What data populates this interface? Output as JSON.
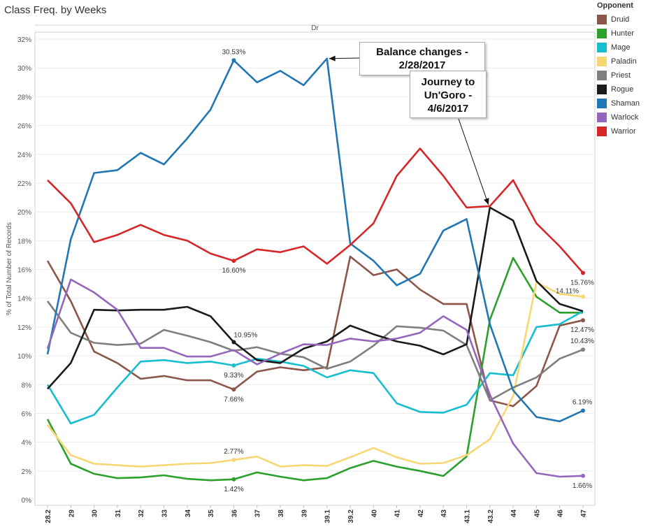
{
  "page": {
    "title": "Class Freq. by Weeks"
  },
  "legend": {
    "title": "Opponent"
  },
  "annotations": [
    {
      "text_lines": [
        "Balance changes -",
        "2/28/2017"
      ]
    },
    {
      "text_lines": [
        "Journey to",
        "Un'Goro -",
        "4/6/2017"
      ]
    }
  ],
  "chart_data": {
    "type": "line",
    "title": "Class Freq. by Weeks",
    "column_header": "Dr",
    "xlabel": "",
    "ylabel": "% of Total Number of Records",
    "ylim": [
      0,
      32
    ],
    "yticks": [
      "0%",
      "2%",
      "4%",
      "6%",
      "8%",
      "10%",
      "12%",
      "14%",
      "16%",
      "18%",
      "20%",
      "22%",
      "24%",
      "26%",
      "28%",
      "30%",
      "32%"
    ],
    "categories": [
      "28.2",
      "29",
      "30",
      "31",
      "32",
      "33",
      "34",
      "35",
      "36",
      "37",
      "38",
      "39",
      "39.1",
      "39.2",
      "40",
      "41",
      "42",
      "43",
      "43.1",
      "43.2",
      "44",
      "45",
      "46",
      "47"
    ],
    "grid": true,
    "legend_position": "right",
    "series": [
      {
        "name": "Druid",
        "color": "#8c564b",
        "values": [
          16.6,
          13.8,
          10.3,
          9.5,
          8.4,
          8.6,
          8.3,
          8.3,
          7.66,
          8.9,
          9.2,
          9.0,
          9.2,
          16.9,
          15.6,
          16.0,
          14.6,
          13.6,
          13.6,
          6.9,
          6.5,
          7.9,
          12.1,
          12.47
        ]
      },
      {
        "name": "Hunter",
        "color": "#2ca02c",
        "values": [
          5.6,
          2.5,
          1.8,
          1.5,
          1.55,
          1.7,
          1.45,
          1.35,
          1.42,
          1.9,
          1.6,
          1.35,
          1.5,
          2.2,
          2.7,
          2.3,
          2.0,
          1.65,
          3.0,
          12.5,
          16.8,
          14.1,
          13.0,
          13.0
        ]
      },
      {
        "name": "Mage",
        "color": "#17becf",
        "values": [
          8.0,
          5.3,
          5.9,
          7.8,
          9.6,
          9.7,
          9.5,
          9.6,
          9.33,
          9.8,
          9.6,
          9.3,
          8.5,
          9.0,
          8.8,
          6.7,
          6.1,
          6.05,
          6.6,
          8.8,
          8.65,
          12.0,
          12.2,
          13.1
        ]
      },
      {
        "name": "Paladin",
        "color": "#f7d774",
        "values": [
          5.2,
          3.1,
          2.5,
          2.4,
          2.3,
          2.4,
          2.5,
          2.55,
          2.77,
          3.0,
          2.3,
          2.4,
          2.35,
          2.95,
          3.6,
          2.95,
          2.5,
          2.55,
          3.1,
          4.2,
          7.2,
          15.1,
          14.3,
          14.11
        ]
      },
      {
        "name": "Priest",
        "color": "#7f7f7f",
        "values": [
          13.8,
          11.6,
          10.9,
          10.75,
          10.85,
          11.8,
          11.4,
          10.95,
          10.35,
          10.6,
          10.15,
          9.9,
          9.1,
          9.6,
          10.7,
          12.05,
          11.95,
          11.75,
          10.75,
          6.9,
          7.8,
          8.5,
          9.8,
          10.43
        ]
      },
      {
        "name": "Rogue",
        "color": "#1a1a1a",
        "values": [
          7.7,
          9.5,
          13.2,
          13.15,
          13.2,
          13.2,
          13.4,
          12.75,
          10.95,
          9.7,
          9.5,
          10.5,
          11.0,
          12.1,
          11.5,
          11.0,
          10.7,
          10.1,
          10.8,
          20.3,
          19.4,
          15.2,
          13.6,
          13.1
        ]
      },
      {
        "name": "Shaman",
        "color": "#1f77b4",
        "values": [
          10.1,
          18.1,
          22.7,
          22.9,
          24.1,
          23.3,
          25.1,
          27.1,
          30.53,
          29.0,
          29.8,
          28.8,
          30.65,
          17.8,
          16.6,
          14.9,
          15.7,
          18.7,
          19.5,
          12.2,
          7.6,
          5.75,
          5.45,
          6.19
        ]
      },
      {
        "name": "Warlock",
        "color": "#9467bd",
        "values": [
          10.5,
          15.3,
          14.4,
          13.2,
          10.55,
          10.55,
          9.95,
          9.95,
          10.4,
          9.4,
          10.15,
          10.8,
          10.75,
          11.2,
          11.0,
          11.2,
          11.6,
          12.75,
          11.8,
          7.3,
          3.9,
          1.85,
          1.6,
          1.66
        ]
      },
      {
        "name": "Warrior",
        "color": "#d62728",
        "values": [
          22.2,
          20.6,
          17.9,
          18.4,
          19.1,
          18.4,
          18.0,
          17.1,
          16.6,
          17.4,
          17.2,
          17.6,
          16.4,
          17.7,
          19.2,
          22.5,
          24.4,
          22.5,
          20.3,
          20.4,
          22.2,
          19.2,
          17.6,
          15.76
        ]
      }
    ],
    "data_labels": [
      {
        "series": "Shaman",
        "category": "36",
        "text": "30.53%",
        "side": "above"
      },
      {
        "series": "Warrior",
        "category": "36",
        "text": "16.60%",
        "side": "below"
      },
      {
        "series": "Rogue",
        "category": "36",
        "text": "10.95%",
        "side": "right-above"
      },
      {
        "series": "Mage",
        "category": "36",
        "text": "9.33%",
        "side": "below"
      },
      {
        "series": "Druid",
        "category": "36",
        "text": "7.66%",
        "side": "below"
      },
      {
        "series": "Paladin",
        "category": "36",
        "text": "2.77%",
        "side": "above"
      },
      {
        "series": "Hunter",
        "category": "36",
        "text": "1.42%",
        "side": "below"
      },
      {
        "series": "Warrior",
        "category": "47",
        "text": "15.76%",
        "side": "below"
      },
      {
        "series": "Paladin",
        "category": "47",
        "text": "14.11%",
        "side": "left"
      },
      {
        "series": "Druid",
        "category": "47",
        "text": "12.47%",
        "side": "below"
      },
      {
        "series": "Priest",
        "category": "47",
        "text": "10.43%",
        "side": "above"
      },
      {
        "series": "Shaman",
        "category": "47",
        "text": "6.19%",
        "side": "above"
      },
      {
        "series": "Warlock",
        "category": "47",
        "text": "1.66%",
        "side": "below"
      }
    ]
  }
}
